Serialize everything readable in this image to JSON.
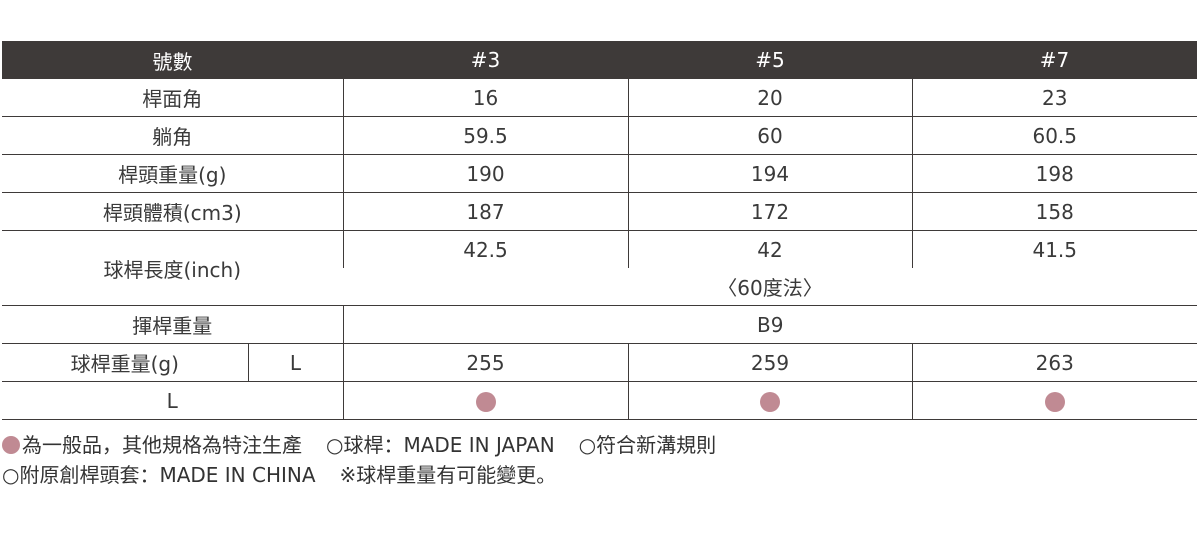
{
  "table": {
    "header": [
      "號數",
      "#3",
      "#5",
      "#7"
    ],
    "rows": [
      {
        "label": "桿面角",
        "cells": [
          "16",
          "20",
          "23"
        ]
      },
      {
        "label": "躺角",
        "cells": [
          "59.5",
          "60",
          "60.5"
        ]
      },
      {
        "label": "桿頭重量(g)",
        "cells": [
          "190",
          "194",
          "198"
        ]
      },
      {
        "label": "桿頭體積(cm3)",
        "cells": [
          "187",
          "172",
          "158"
        ]
      }
    ],
    "length": {
      "label": "球桿長度(inch)",
      "cells": [
        "42.5",
        "42",
        "41.5"
      ],
      "note": "〈60度法〉"
    },
    "swing_weight": {
      "label": "揮桿重量",
      "value": "B9"
    },
    "shaft_weight": {
      "label": "球桿重量(g)",
      "flex": "L",
      "cells": [
        "255",
        "259",
        "263"
      ]
    },
    "availability": {
      "label": "L"
    }
  },
  "notes": [
    [
      "為一般品，其他規格為特注生產",
      "○球桿：MADE IN JAPAN",
      "○符合新溝規則"
    ],
    [
      "○附原創桿頭套：MADE IN CHINA",
      "※球桿重量有可能變更。"
    ]
  ]
}
